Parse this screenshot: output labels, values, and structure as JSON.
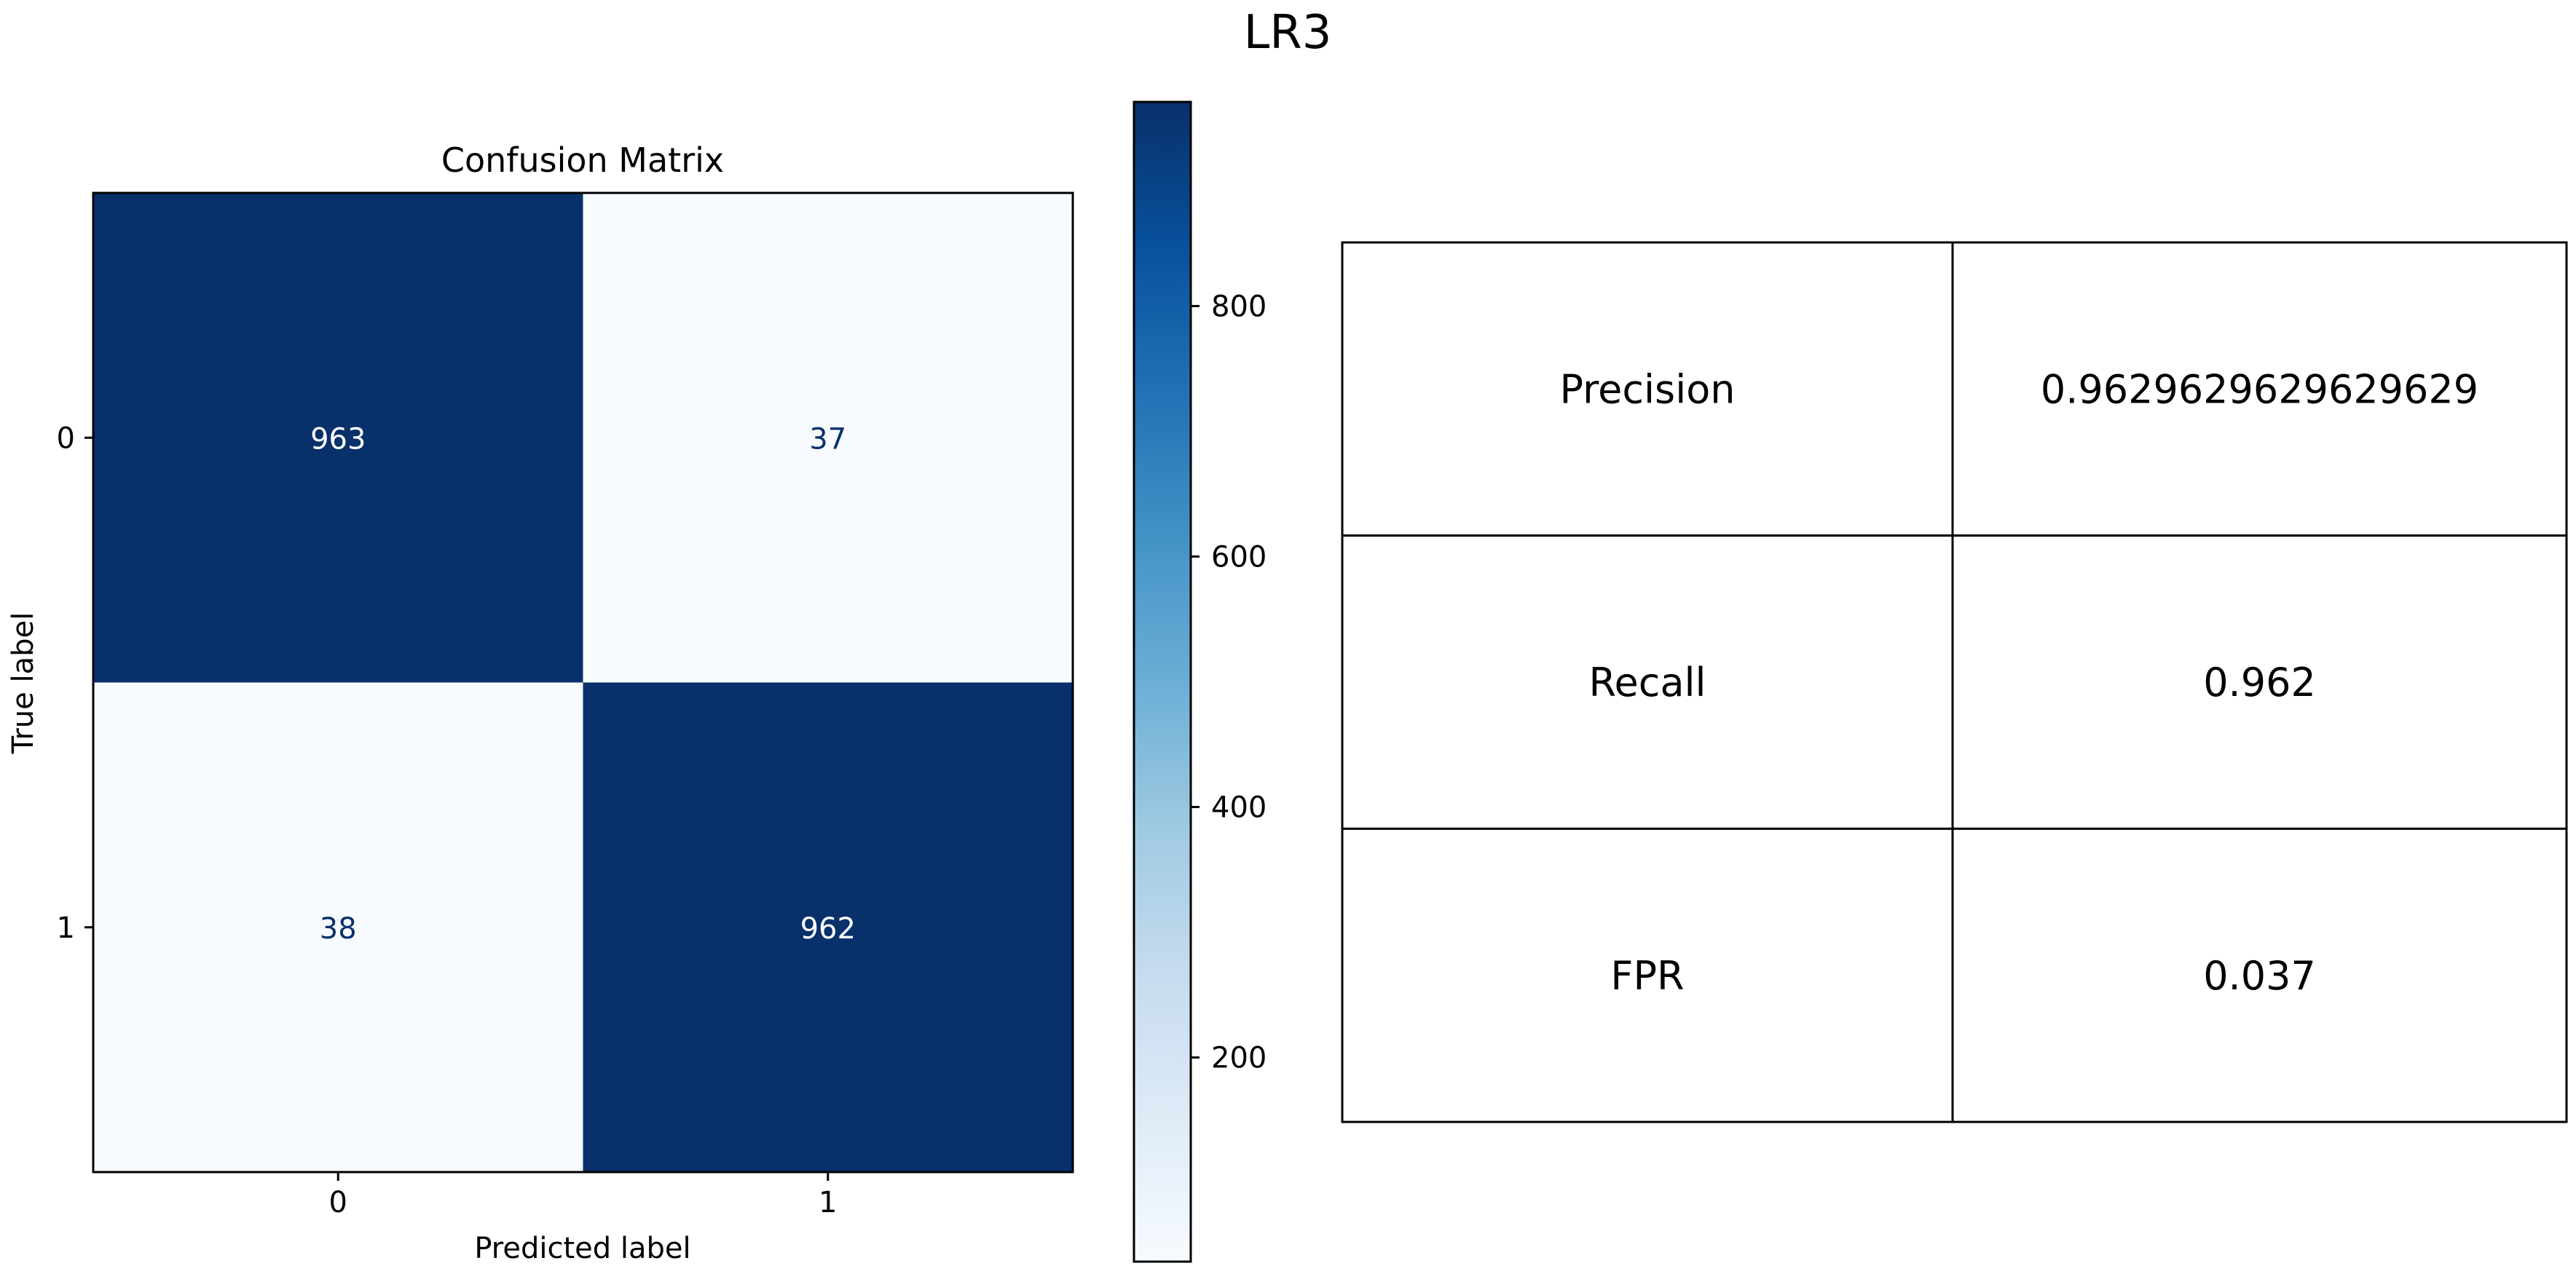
{
  "figure": {
    "title": "LR3"
  },
  "chart_data": [
    {
      "type": "heatmap",
      "title": "Confusion Matrix",
      "xlabel": "Predicted label",
      "ylabel": "True label",
      "x_categories": [
        "0",
        "1"
      ],
      "y_categories": [
        "0",
        "1"
      ],
      "values": [
        [
          963,
          37
        ],
        [
          38,
          962
        ]
      ],
      "colormap": "Blues",
      "colorbar": {
        "range": [
          37,
          963
        ],
        "ticks": [
          200,
          400,
          600,
          800
        ]
      }
    },
    {
      "type": "table",
      "rows": [
        [
          "Precision",
          "0.9629629629629629"
        ],
        [
          "Recall",
          "0.962"
        ],
        [
          "FPR",
          "0.037"
        ]
      ]
    }
  ]
}
